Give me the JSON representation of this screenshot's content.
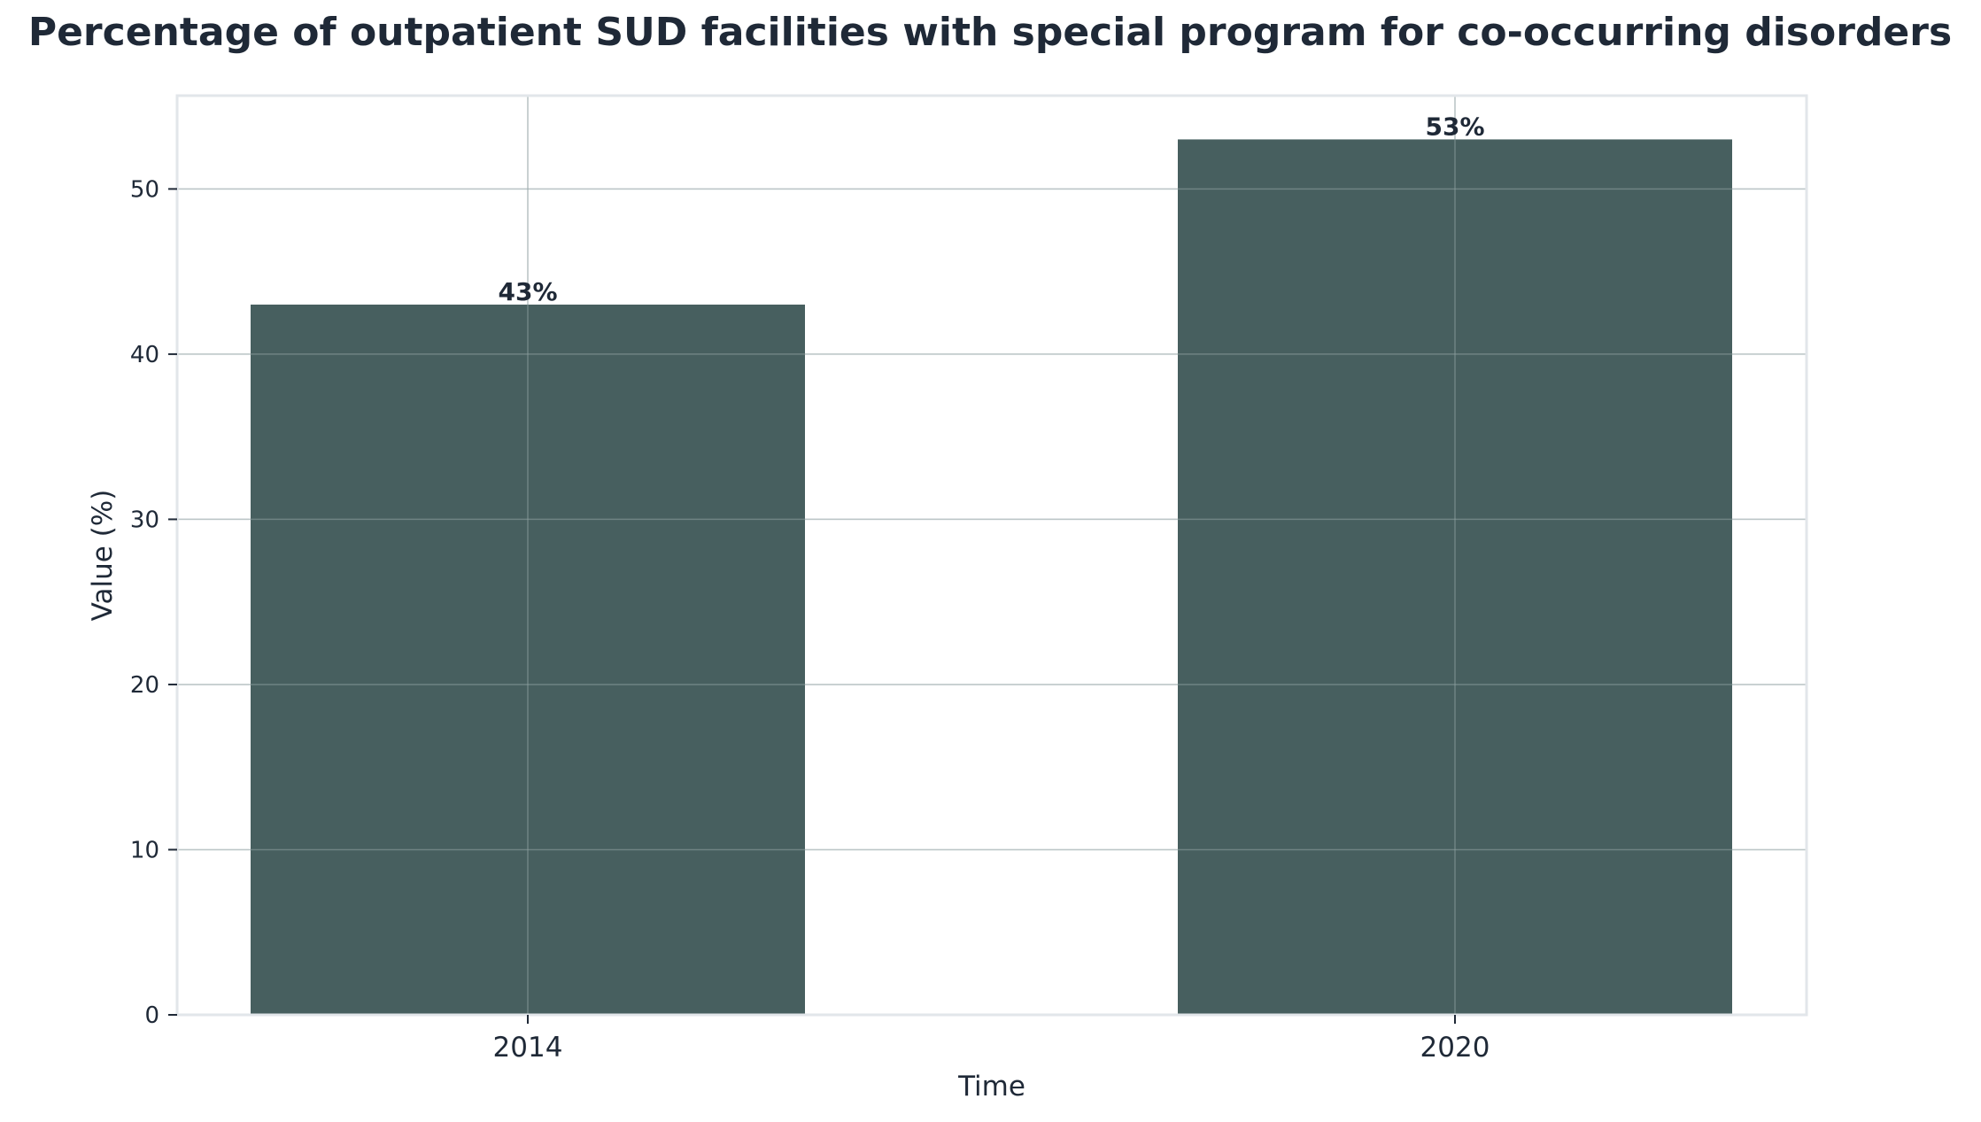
{
  "chart_data": {
    "type": "bar",
    "title": "Percentage of outpatient SUD facilities with special program for co-occurring disorders",
    "xlabel": "Time",
    "ylabel": "Value (%)",
    "categories": [
      "2014",
      "2020"
    ],
    "values": [
      43,
      53
    ],
    "data_labels": [
      "43%",
      "53%"
    ],
    "ylim": [
      0,
      55.65
    ],
    "yticks": [
      0,
      10,
      20,
      30,
      40,
      50
    ],
    "grid": true,
    "legend": "none",
    "colors": {
      "bar": "#475f5f",
      "text": "#1f2937",
      "frame": "#e2e6ea",
      "grid": "#f1f3f5",
      "grid_over_bar": "#8fa0a0"
    }
  }
}
